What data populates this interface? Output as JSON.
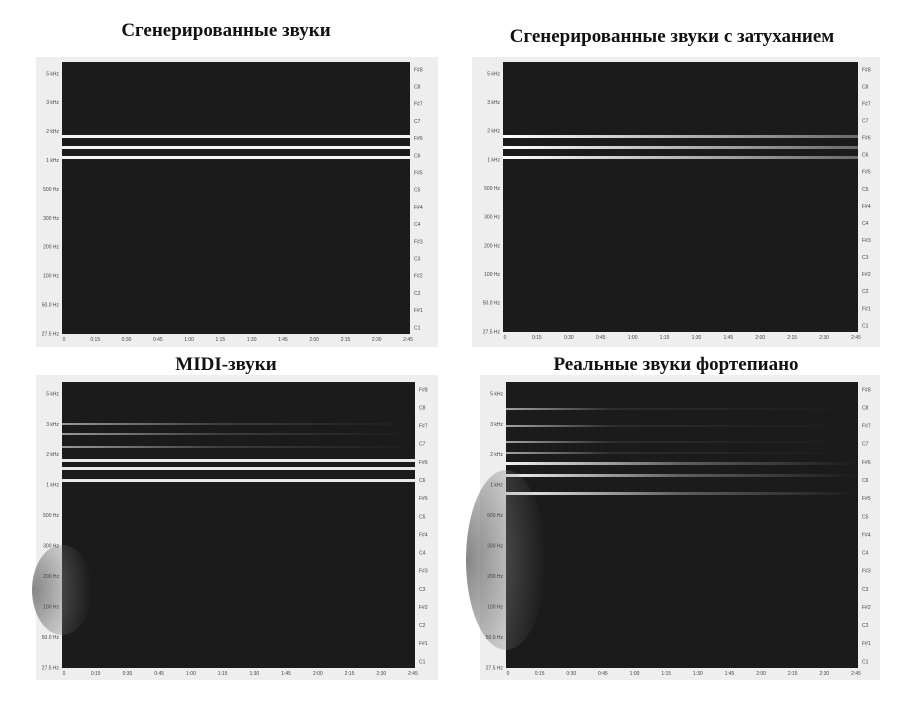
{
  "figure": {
    "panels": [
      {
        "title": "Сгенерированные звуки"
      },
      {
        "title": "Сгенерированные звуки с затуханием"
      },
      {
        "title": "MIDI-звуки"
      },
      {
        "title": "Реальные звуки фортепиано"
      }
    ],
    "axes": {
      "frequency_labels": [
        "5 kHz",
        "3 kHz",
        "2 kHz",
        "1 kHz",
        "500 Hz",
        "300 Hz",
        "200 Hz",
        "100 Hz",
        "50.0 Hz",
        "27.5 Hz"
      ],
      "note_labels": [
        "F#8",
        "C8",
        "F#7",
        "C7",
        "F#6",
        "C6",
        "F#5",
        "C5",
        "F#4",
        "C4",
        "F#3",
        "C3",
        "F#2",
        "C2",
        "F#1",
        "C1"
      ],
      "time_labels": [
        "0",
        "0:15",
        "0:30",
        "0:45",
        "1:00",
        "1:15",
        "1:30",
        "1:45",
        "2:00",
        "2:15",
        "2:30",
        "2:45"
      ]
    }
  }
}
